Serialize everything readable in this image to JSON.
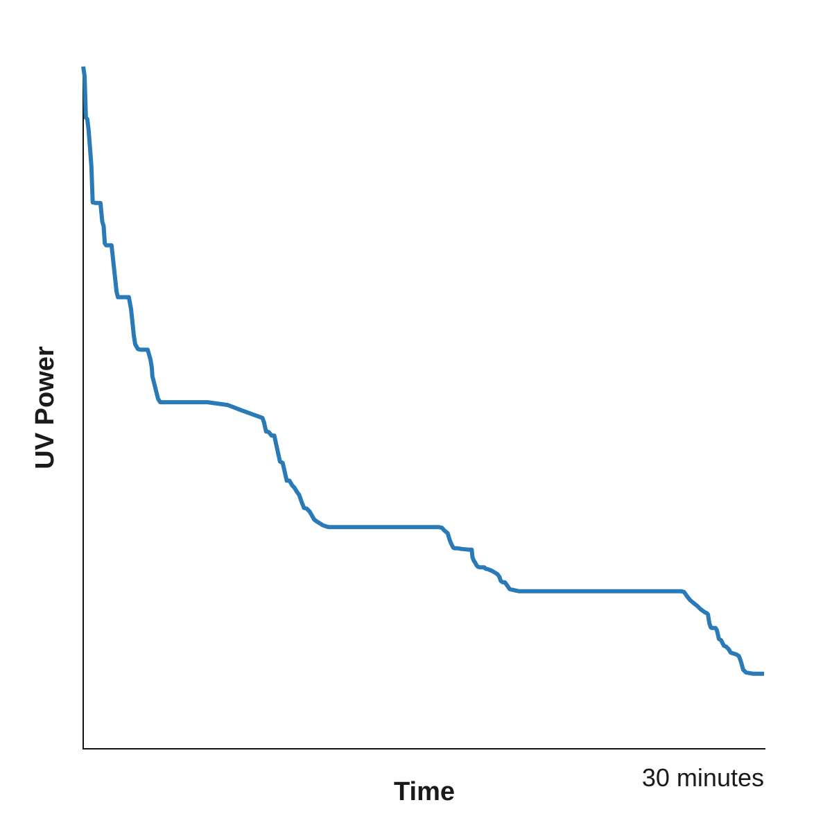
{
  "chart_data": {
    "type": "line",
    "title": "",
    "xlabel": "Time",
    "ylabel": "UV Power",
    "x_tick_labels": [
      {
        "x": 30,
        "label": "30 minutes"
      }
    ],
    "xlim": [
      0,
      30
    ],
    "ylim": [
      0,
      100
    ],
    "grid": false,
    "legend": "none",
    "series": [
      {
        "color": "#2a7ab8",
        "x": [
          0,
          0.06,
          0.12,
          0.18,
          0.24,
          0.3,
          0.36,
          0.42,
          0.55,
          0.76,
          0.84,
          0.9,
          0.95,
          1.01,
          1.25,
          1.47,
          1.53,
          1.65,
          1.71,
          1.74,
          1.77,
          1.83,
          2.01,
          2.11,
          2.23,
          2.29,
          2.41,
          2.54,
          2.66,
          2.72,
          2.78,
          2.84,
          2.96,
          3.02,
          3.05,
          3.3,
          3.39,
          3.48,
          3.57,
          3.63,
          3.72,
          3.81,
          3.9,
          3.96,
          4.02,
          4.05,
          4.08,
          4.14,
          4.2,
          4.26,
          4.38,
          4.44,
          4.5,
          4.57,
          4.63,
          4.69,
          4.75,
          4.81,
          4.87,
          4.93,
          4.96,
          5.02,
          5.08,
          5.14,
          5.2,
          5.26,
          5.32,
          5.48,
          6.36,
          7.07,
          7.9,
          7.97,
          8.06,
          8.12,
          8.18,
          8.3,
          8.42,
          8.55,
          8.67,
          8.79,
          8.97,
          9.09,
          9.21,
          9.3,
          9.43,
          9.52,
          9.61,
          9.73,
          9.85,
          9.97,
          10.06,
          10.18,
          10.3,
          10.45,
          10.54,
          10.61,
          10.7,
          10.82,
          10.94,
          11.06,
          11.19,
          11.34,
          11.43,
          11.62,
          11.9,
          12.6,
          13.14,
          13.56,
          14.08,
          14.85,
          15.36,
          15.66,
          15.81,
          15.91,
          16.06,
          16.15,
          16.21,
          16.3,
          16.36,
          16.42,
          16.48,
          16.66,
          16.97,
          17.12,
          17.15,
          17.21,
          17.27,
          17.33,
          17.39,
          17.48,
          17.67,
          17.73,
          17.85,
          18.0,
          18.15,
          18.25,
          18.34,
          18.4,
          18.49,
          18.58,
          18.67,
          18.79,
          18.92,
          19.19,
          20.21,
          22.3,
          24.06,
          24.79,
          26.16,
          26.34,
          26.47,
          26.62,
          26.74,
          26.92,
          27.07,
          27.19,
          27.31,
          27.4,
          27.47,
          27.53,
          27.59,
          27.65,
          27.71,
          27.77,
          27.86,
          27.92,
          28.01,
          28.11,
          28.23,
          28.32,
          28.44,
          28.53,
          28.62,
          28.71,
          28.8,
          28.89,
          28.98,
          29.08,
          29.2,
          29.35,
          29.53,
          29.78,
          30
        ],
        "y": [
          100,
          98.6,
          92.5,
          92.3,
          90.6,
          88.1,
          85.4,
          80.1,
          80,
          80,
          77.3,
          76.6,
          74.1,
          73.8,
          73.8,
          67,
          66.2,
          66.2,
          66.2,
          66.2,
          66.2,
          66.2,
          66.2,
          64.4,
          60.6,
          59.3,
          58.6,
          58.5,
          58.5,
          58.5,
          58.5,
          58.5,
          57.1,
          55.9,
          54.6,
          51.3,
          50.8,
          50.8,
          50.8,
          50.8,
          50.8,
          50.8,
          50.8,
          50.8,
          50.8,
          50.8,
          50.8,
          50.8,
          50.8,
          50.8,
          50.8,
          50.8,
          50.8,
          50.8,
          50.8,
          50.8,
          50.8,
          50.8,
          50.8,
          50.8,
          50.8,
          50.8,
          50.8,
          50.8,
          50.8,
          50.8,
          50.8,
          50.8,
          50.4,
          49.5,
          48.5,
          47.8,
          46.5,
          46.5,
          46.4,
          45.9,
          45.9,
          43.9,
          42.1,
          41.9,
          39.3,
          39.3,
          38.6,
          38.3,
          37.6,
          37.2,
          36.3,
          35.3,
          35.2,
          34.8,
          34.3,
          33.6,
          33.3,
          33.0,
          32.8,
          32.7,
          32.6,
          32.5,
          32.5,
          32.5,
          32.5,
          32.5,
          32.5,
          32.5,
          32.5,
          32.5,
          32.5,
          32.5,
          32.5,
          32.5,
          32.5,
          32.5,
          32.4,
          32.0,
          31.6,
          30.6,
          30.1,
          29.5,
          29.4,
          29.4,
          29.4,
          29.3,
          29.2,
          29.2,
          28.1,
          27.6,
          27.3,
          26.9,
          26.7,
          26.6,
          26.6,
          26.4,
          26.3,
          26.1,
          25.8,
          25.6,
          25.2,
          24.6,
          24.4,
          24.4,
          24.0,
          23.4,
          23.3,
          23.1,
          23.1,
          23.1,
          23.1,
          23.1,
          23.1,
          23.1,
          23.0,
          22.3,
          21.8,
          21.3,
          20.9,
          20.5,
          20.2,
          20.0,
          19.9,
          19.7,
          18.4,
          17.8,
          17.7,
          17.7,
          17.7,
          17.4,
          16.1,
          15.9,
          15.1,
          15.0,
          14.6,
          14.1,
          14.0,
          13.9,
          13.8,
          13.6,
          12.8,
          11.6,
          11.2,
          11.1,
          11.0,
          11.0,
          11.0
        ]
      }
    ]
  }
}
